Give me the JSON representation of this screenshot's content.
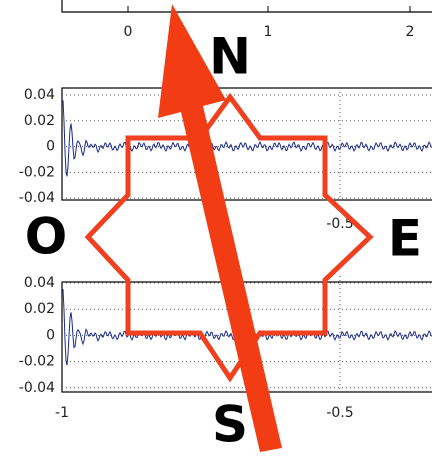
{
  "compass": {
    "north": "N",
    "south": "S",
    "east": "E",
    "west": "O"
  },
  "top_plot": {
    "x_tick_labels": [
      "0",
      "1",
      "2"
    ]
  },
  "middle_plot": {
    "y_tick_labels": [
      "0.04",
      "0.02",
      "0",
      "-0.02",
      "-0.04"
    ],
    "x_tick_labels": [
      "-0.5"
    ]
  },
  "bottom_plot": {
    "y_tick_labels": [
      "0.04",
      "0.02",
      "0",
      "-0.02",
      "-0.04"
    ],
    "x_tick_labels": [
      "-1",
      "-0.5"
    ]
  }
}
